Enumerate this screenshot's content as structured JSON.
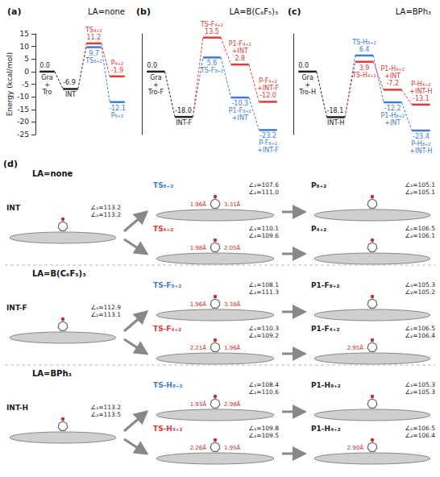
{
  "chart_data": [
    {
      "type": "energy_profile",
      "letter": "(a)",
      "title": "LA=none",
      "ylabel": "Energy (kcal/mol)",
      "ylim": [
        -25,
        15
      ],
      "yticks": [
        -25,
        -20,
        -15,
        -10,
        -5,
        0,
        5,
        10,
        15
      ],
      "tick_labels": "y",
      "grid": false,
      "data_labels": true,
      "categories": [
        null,
        null,
        null,
        null
      ],
      "series": [
        {
          "color": "#222222",
          "values": [
            0.0,
            -6.9,
            null,
            null
          ],
          "value_labels": [
            "0.0",
            "-6.9",
            null,
            null
          ],
          "point_labels": [
            "Gra + Tro",
            "INT",
            null,
            null
          ]
        },
        {
          "color": "#3b7dd8",
          "values": [
            null,
            null,
            9.7,
            -12.1
          ],
          "value_labels": [
            null,
            null,
            "9.7",
            "-12.1"
          ],
          "point_labels": [
            null,
            null,
            "TS₈₊₂",
            "P₈₊₂"
          ]
        },
        {
          "color": "#e53935",
          "values": [
            null,
            null,
            11.2,
            -1.9
          ],
          "value_labels": [
            null,
            null,
            "11.2",
            "-1.9"
          ],
          "point_labels": [
            null,
            null,
            "TS₄₊₂",
            "P₄₊₂"
          ]
        }
      ]
    },
    {
      "type": "energy_profile",
      "letter": "(b)",
      "title": "LA=B(C₆F₅)₃",
      "ylim": [
        -25,
        15
      ],
      "tick_labels": false,
      "grid": false,
      "data_labels": true,
      "categories": [
        null,
        null,
        null,
        null,
        null
      ],
      "series": [
        {
          "color": "#222222",
          "values": [
            0.0,
            -18.0,
            null,
            null,
            null
          ],
          "value_labels": [
            "0.0",
            "-18.0",
            null,
            null,
            null
          ],
          "point_labels": [
            "Gra + Tro-F",
            "INT-F",
            null,
            null,
            null
          ]
        },
        {
          "color": "#3b7dd8",
          "values": [
            null,
            null,
            5.6,
            -10.3,
            -23.2
          ],
          "value_labels": [
            null,
            null,
            "5.6",
            "-10.3",
            "-23.2"
          ],
          "point_labels": [
            null,
            null,
            "TS-F₈₊₂",
            "P1-F₈₊₂",
            "P-F₈₊₂"
          ],
          "extra_labels": [
            null,
            null,
            null,
            "+INT",
            "+INT-F"
          ]
        },
        {
          "color": "#e53935",
          "values": [
            null,
            null,
            13.5,
            2.8,
            -12.0
          ],
          "value_labels": [
            null,
            null,
            "13.5",
            "2.8",
            "-12.0"
          ],
          "point_labels": [
            null,
            null,
            "TS-F₄₊₂",
            "P1-F₄₊₂",
            "P-F₄₊₂"
          ],
          "extra_labels": [
            null,
            null,
            null,
            "+INT",
            "+INT-F"
          ]
        }
      ]
    },
    {
      "type": "energy_profile",
      "letter": "(c)",
      "title": "LA=BPh₃",
      "ylim": [
        -25,
        15
      ],
      "tick_labels": false,
      "grid": false,
      "data_labels": true,
      "categories": [
        null,
        null,
        null,
        null,
        null
      ],
      "series": [
        {
          "color": "#222222",
          "values": [
            0.0,
            -18.1,
            null,
            null,
            null
          ],
          "value_labels": [
            "0.0",
            "-18.1",
            null,
            null,
            null
          ],
          "point_labels": [
            "Gra + Tro-H",
            "INT-H",
            null,
            null,
            null
          ]
        },
        {
          "color": "#3b7dd8",
          "values": [
            null,
            null,
            6.4,
            -12.2,
            -23.4
          ],
          "value_labels": [
            null,
            null,
            "6.4",
            "-12.2",
            "-23.4"
          ],
          "point_labels": [
            null,
            null,
            "TS-H₈₊₂",
            "P1-H₈₊₂",
            "P-H₈₊₂"
          ],
          "extra_labels": [
            null,
            null,
            null,
            "+INT",
            "+INT-H"
          ]
        },
        {
          "color": "#e53935",
          "values": [
            null,
            null,
            3.9,
            -7.2,
            -13.1
          ],
          "value_labels": [
            null,
            null,
            "3.9",
            "-7.2",
            "-13.1"
          ],
          "point_labels": [
            null,
            null,
            "TS-H₄₊₂",
            "P1-H₄₊₂",
            "P-H₄₊₂"
          ],
          "extra_labels": [
            null,
            null,
            null,
            "+INT",
            "+INT-H"
          ]
        }
      ]
    }
  ],
  "figure_d": {
    "letter": "(d)",
    "rows": [
      {
        "title": "LA=none",
        "int": {
          "label": "INT",
          "color": "#222222",
          "angles": [
            "∠₁=113.2",
            "∠₂=113.2"
          ]
        },
        "ts": [
          {
            "label": "TS₈₊₂",
            "color": "#3b7dd8",
            "angles": [
              "∠₁=107.6",
              "∠₂=111.0"
            ],
            "distances": [
              "1.96Å",
              "3.31Å"
            ]
          },
          {
            "label": "TS₄₊₂",
            "color": "#e53935",
            "angles": [
              "∠₁=110.1",
              "∠₂=109.6"
            ],
            "distances": [
              "1.98Å",
              "2.05Å"
            ]
          }
        ],
        "products": [
          {
            "label": "P₈₊₂",
            "color": "#222222",
            "angles": [
              "∠₁=105.1",
              "∠₂=105.1"
            ]
          },
          {
            "label": "P₄₊₂",
            "color": "#222222",
            "angles": [
              "∠₁=106.5",
              "∠₂=106.1"
            ]
          }
        ]
      },
      {
        "title": "LA=B(C₆F₅)₃",
        "int": {
          "label": "INT-F",
          "color": "#222222",
          "angles": [
            "∠₁=112.9",
            "∠₂=113.1"
          ]
        },
        "ts": [
          {
            "label": "TS-F₈₊₂",
            "color": "#3b7dd8",
            "angles": [
              "∠₁=108.1",
              "∠₂=111.3"
            ],
            "distances": [
              "1.96Å",
              "3.38Å"
            ]
          },
          {
            "label": "TS-F₄₊₂",
            "color": "#e53935",
            "angles": [
              "∠₁=110.3",
              "∠₂=109.2"
            ],
            "distances": [
              "2.21Å",
              "1.96Å"
            ]
          }
        ],
        "products": [
          {
            "label": "P1-F₈₊₂",
            "color": "#222222",
            "angles": [
              "∠₁=105.3",
              "∠₂=105.2"
            ]
          },
          {
            "label": "P1-F₄₊₂",
            "color": "#222222",
            "angles": [
              "∠₁=106.5",
              "∠₂=106.4"
            ],
            "distances": [
              "2.95Å"
            ]
          }
        ]
      },
      {
        "title": "LA=BPh₃",
        "int": {
          "label": "INT-H",
          "color": "#222222",
          "angles": [
            "∠₁=113.2",
            "∠₂=113.5"
          ]
        },
        "ts": [
          {
            "label": "TS-H₈₊₂",
            "color": "#3b7dd8",
            "angles": [
              "∠₁=108.4",
              "∠₂=110.6"
            ],
            "distances": [
              "1.93Å",
              "2.98Å"
            ]
          },
          {
            "label": "TS-H₄₊₂",
            "color": "#e53935",
            "angles": [
              "∠₁=109.8",
              "∠₂=109.5"
            ],
            "distances": [
              "2.26Å",
              "1.95Å"
            ]
          }
        ],
        "products": [
          {
            "label": "P1-H₈₊₂",
            "color": "#222222",
            "angles": [
              "∠₁=105.3",
              "∠₂=105.3"
            ]
          },
          {
            "label": "P1-H₄₊₂",
            "color": "#222222",
            "angles": [
              "∠₁=106.5",
              "∠₂=106.4"
            ],
            "distances": [
              "2.90Å"
            ]
          }
        ]
      }
    ]
  }
}
